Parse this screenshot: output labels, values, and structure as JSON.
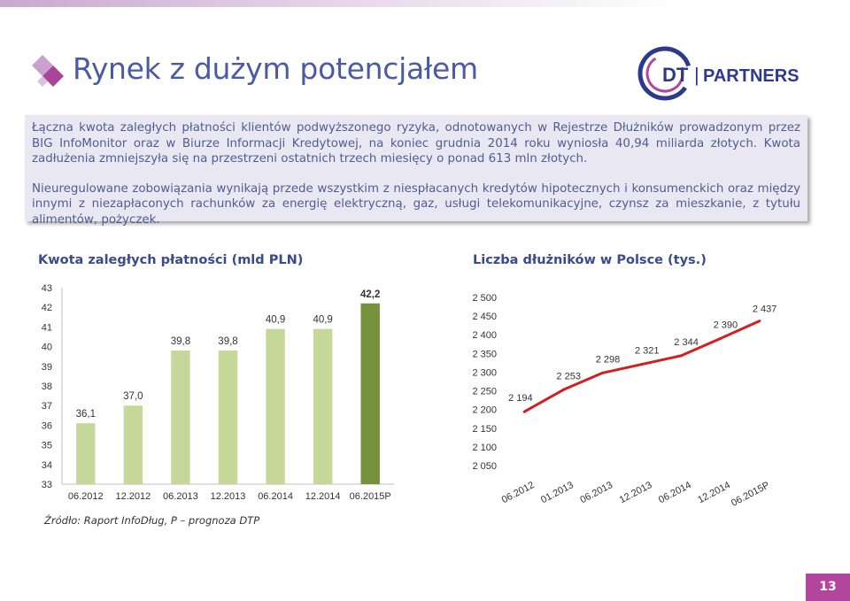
{
  "header": {
    "title": "Rynek z dużym potencjałem",
    "brand": {
      "dt": "DT",
      "separator": "|",
      "partners": "PARTNERS"
    }
  },
  "info": {
    "paragraph1": "Łączna kwota zaległych płatności klientów podwyższonego ryzyka, odnotowanych w Rejestrze Dłużników prowadzonym przez BIG InfoMonitor oraz w Biurze Informacji Kredytowej, na koniec grudnia 2014 roku wyniosła 40,94 miliarda złotych. Kwota zadłużenia zmniejszyła się na przestrzeni ostatnich trzech miesięcy o ponad 613 mln złotych.",
    "paragraph2": "Nieuregulowane zobowiązania wynikają przede wszystkim z niespłacanych kredytów hipotecznych i konsumenckich oraz między innymi z niezapłaconych rachunków za energię elektryczną, gaz, usługi telekomunikacyjne, czynsz za mieszkanie, z tytułu alimentów, pożyczek."
  },
  "colors": {
    "title": "#4a5aa6",
    "bar": "#c5d89a",
    "bar_highlight": "#77923c",
    "line": "#d21f1f",
    "accent": "#b3459c",
    "box": "#e9e7f1"
  },
  "chart_data": [
    {
      "type": "bar",
      "title": "Kwota zaległych płatności (mld PLN)",
      "categories": [
        "06.2012",
        "12.2012",
        "06.2013",
        "12.2013",
        "06.2014",
        "12.2014",
        "06.2015P"
      ],
      "values": [
        36.1,
        37.0,
        39.8,
        39.8,
        40.9,
        40.9,
        42.2
      ],
      "data_labels": [
        "36,1",
        "37,0",
        "39,8",
        "39,8",
        "40,9",
        "40,9",
        "42,2"
      ],
      "highlight_index": 6,
      "yticks": [
        "33",
        "34",
        "35",
        "36",
        "37",
        "38",
        "39",
        "40",
        "41",
        "42",
        "43"
      ],
      "ylim": [
        33,
        43
      ],
      "grid": false
    },
    {
      "type": "line",
      "title": "Liczba dłużników w Polsce (tys.)",
      "categories": [
        "06.2012",
        "01.2013",
        "06.2013",
        "12.2013",
        "06.2014",
        "12.2014",
        "06.2015P"
      ],
      "values": [
        2194,
        2253,
        2298,
        2321,
        2344,
        2390,
        2437
      ],
      "data_labels": [
        "2 194",
        "2 253",
        "2 298",
        "2 321",
        "2 344",
        "2 390",
        "2 437"
      ],
      "yticks": [
        "2 050",
        "2 100",
        "2 150",
        "2 200",
        "2 250",
        "2 300",
        "2 350",
        "2 400",
        "2 450",
        "2 500"
      ],
      "ylim": [
        2050,
        2500
      ],
      "grid": false
    }
  ],
  "footer": {
    "source": "Źródło: Raport InfoDług, P – prognoza DTP",
    "page_number": "13"
  }
}
